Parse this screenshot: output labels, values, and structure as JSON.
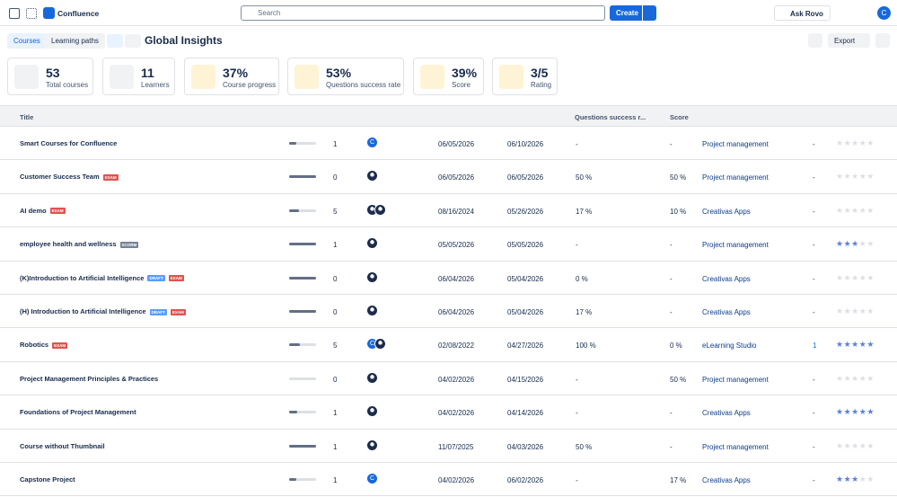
{
  "header": {
    "app": "Confluence",
    "search": "Search",
    "create": "Create",
    "ask": "Ask Rovo",
    "user": "C"
  },
  "toolbar": {
    "tabs": [
      "Courses",
      "Learning paths"
    ],
    "title": "Global Insights",
    "export": "Export"
  },
  "stats": [
    {
      "value": "53",
      "label": "Total courses",
      "color": "#f1f2f4"
    },
    {
      "value": "11",
      "label": "Learners",
      "color": "#f1f2f4"
    },
    {
      "value": "37%",
      "label": "Course progress",
      "color": "#fff3d6"
    },
    {
      "value": "53%",
      "label": "Questions success rate",
      "color": "#fff3d6"
    },
    {
      "value": "39%",
      "label": "Score",
      "color": "#fff3d6"
    },
    {
      "value": "3/5",
      "label": "Rating",
      "color": "#fff3d6"
    }
  ],
  "table": {
    "columns": {
      "title": "Title",
      "questions": "Questions success r...",
      "score": "Score"
    },
    "rows": [
      {
        "title": "Smart Courses for Confluence",
        "tags": [],
        "progress": 25,
        "learners": 1,
        "avatars": [
          {
            "letter": "C"
          }
        ],
        "start": "06/05/2026",
        "end": "06/10/2026",
        "questions": "-",
        "score": "-",
        "category": "Project management",
        "count": "-",
        "rating": 0
      },
      {
        "title": "Customer Success Team",
        "tags": [
          {
            "text": "EXAM",
            "color": "#e0524f"
          }
        ],
        "progress": 100,
        "learners": 0,
        "avatars": [
          {
            "photo": true
          }
        ],
        "start": "06/05/2026",
        "end": "06/05/2026",
        "questions": "50 %",
        "score": "50 %",
        "category": "Project management",
        "count": "-",
        "rating": 0
      },
      {
        "title": "AI demo",
        "tags": [
          {
            "text": "EXAM",
            "color": "#e0524f"
          }
        ],
        "progress": 35,
        "learners": 5,
        "avatars": [
          {
            "photo": true
          },
          {
            "photo": true
          }
        ],
        "start": "08/16/2024",
        "end": "05/26/2026",
        "questions": "17 %",
        "score": "10 %",
        "category": "Creativas Apps",
        "count": "-",
        "rating": 0
      },
      {
        "title": "employee health and wellness",
        "tags": [
          {
            "text": "SCORM",
            "color": "#758195"
          }
        ],
        "progress": 100,
        "learners": 1,
        "avatars": [
          {
            "photo": true
          }
        ],
        "start": "05/05/2026",
        "end": "05/05/2026",
        "questions": "-",
        "score": "-",
        "category": "Project management",
        "count": "-",
        "rating": 3
      },
      {
        "title": "(K)Introduction to Artificial Intelligence",
        "tags": [
          {
            "text": "DRAFT",
            "color": "#579dff"
          },
          {
            "text": "EXAM",
            "color": "#e0524f"
          }
        ],
        "progress": 100,
        "learners": 0,
        "avatars": [
          {
            "photo": true
          }
        ],
        "start": "06/04/2026",
        "end": "05/04/2026",
        "questions": "0 %",
        "score": "-",
        "category": "Creativas Apps",
        "count": "-",
        "rating": 0
      },
      {
        "title": "(H) Introduction to Artificial Intelligence",
        "tags": [
          {
            "text": "DRAFT",
            "color": "#579dff"
          },
          {
            "text": "EXAM",
            "color": "#e0524f"
          }
        ],
        "progress": 100,
        "learners": 0,
        "avatars": [
          {
            "photo": true
          }
        ],
        "start": "06/04/2026",
        "end": "05/04/2026",
        "questions": "17 %",
        "score": "-",
        "category": "Creativas Apps",
        "count": "-",
        "rating": 0
      },
      {
        "title": "Robotics",
        "tags": [
          {
            "text": "EXAM",
            "color": "#e0524f"
          }
        ],
        "progress": 40,
        "learners": 5,
        "avatars": [
          {
            "letter": "C"
          },
          {
            "photo": true
          }
        ],
        "start": "02/08/2022",
        "end": "04/27/2026",
        "questions": "100 %",
        "score": "0 %",
        "category": "eLearning Studio",
        "count": "1",
        "rating": 5
      },
      {
        "title": "Project Management Principles & Practices",
        "tags": [],
        "progress": 0,
        "learners": 0,
        "avatars": [
          {
            "photo": true
          }
        ],
        "start": "04/02/2026",
        "end": "04/15/2026",
        "questions": "-",
        "score": "50 %",
        "category": "Project management",
        "count": "-",
        "rating": 0
      },
      {
        "title": "Foundations of Project Management",
        "tags": [],
        "progress": 30,
        "learners": 1,
        "avatars": [
          {
            "photo": true
          }
        ],
        "start": "04/02/2026",
        "end": "04/14/2026",
        "questions": "-",
        "score": "-",
        "category": "Creativas Apps",
        "count": "-",
        "rating": 5
      },
      {
        "title": "Course without Thumbnail",
        "tags": [],
        "progress": 100,
        "learners": 1,
        "avatars": [
          {
            "photo": true
          }
        ],
        "start": "11/07/2025",
        "end": "04/03/2026",
        "questions": "50 %",
        "score": "-",
        "category": "Project management",
        "count": "-",
        "rating": 0
      },
      {
        "title": "Capstone Project",
        "tags": [],
        "progress": 25,
        "learners": 1,
        "avatars": [
          {
            "letter": "C"
          }
        ],
        "start": "04/02/2026",
        "end": "06/02/2026",
        "questions": "-",
        "score": "17 %",
        "category": "Creativas Apps",
        "count": "-",
        "rating": 3
      }
    ]
  }
}
